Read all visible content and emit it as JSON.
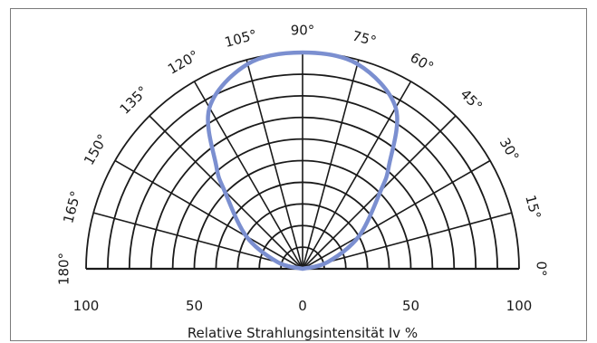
{
  "chart_data": {
    "type": "polar",
    "title": "",
    "xlabel": "Relative Strahlungsintensität Iv %",
    "radial_max": 100,
    "radial_rings": [
      10,
      20,
      30,
      40,
      50,
      60,
      70,
      80,
      90,
      100
    ],
    "radial_tick_labels": [
      "100",
      "50",
      "0",
      "50",
      "100"
    ],
    "angular_range": [
      0,
      180
    ],
    "angle_lines_deg": [
      0,
      15,
      30,
      45,
      60,
      75,
      90,
      105,
      120,
      135,
      150,
      165,
      180
    ],
    "angle_labels": [
      "0°",
      "15°",
      "30°",
      "45°",
      "60°",
      "75°",
      "90°",
      "105°",
      "120°",
      "135°",
      "150°",
      "165°",
      "180°"
    ],
    "series": [
      {
        "color": "#7b8fd0",
        "points": [
          {
            "angle": 90,
            "r": 100
          },
          {
            "angle": 75,
            "r": 98
          },
          {
            "angle": 60,
            "r": 86
          },
          {
            "angle": 50,
            "r": 62
          },
          {
            "angle": 45,
            "r": 51
          },
          {
            "angle": 30,
            "r": 30
          },
          {
            "angle": 15,
            "r": 12
          },
          {
            "angle": 0,
            "r": 0
          },
          {
            "angle": 105,
            "r": 98
          },
          {
            "angle": 120,
            "r": 86
          },
          {
            "angle": 130,
            "r": 62
          },
          {
            "angle": 135,
            "r": 51
          },
          {
            "angle": 150,
            "r": 30
          },
          {
            "angle": 165,
            "r": 12
          },
          {
            "angle": 180,
            "r": 0
          }
        ]
      }
    ],
    "grid_color": "#1a1a1a"
  }
}
